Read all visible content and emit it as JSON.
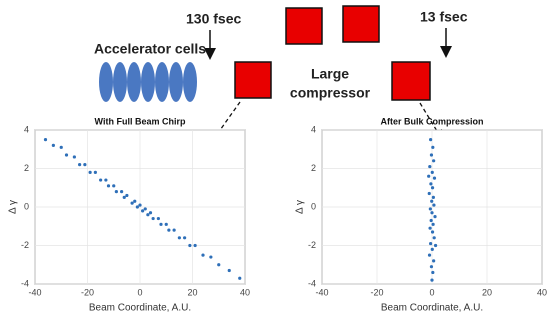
{
  "diagram": {
    "left_time": "130 fsec",
    "right_time": "13 fsec",
    "accelerator_label": "Accelerator cells",
    "compressor_label": [
      "Large",
      "compressor"
    ]
  },
  "chart_data": [
    {
      "type": "scatter",
      "title": "With Full Beam Chirp",
      "x_label": "Beam Coordinate, A.U.",
      "y_label": "Δ γ",
      "color": "#2e6fb8",
      "grid": true,
      "xlim": [
        -40,
        40
      ],
      "xticks": [
        -40,
        -20,
        0,
        20,
        40
      ],
      "ylim": [
        -4,
        4
      ],
      "yticks": [
        -4,
        -2,
        0,
        2,
        4
      ],
      "x": [
        -36,
        -33,
        -30,
        -28,
        -25,
        -23,
        -21,
        -19,
        -17,
        -15,
        -13,
        -12,
        -10,
        -9,
        -7,
        -6,
        -5,
        -3,
        -2,
        -1,
        0,
        1,
        2,
        3,
        4,
        5,
        7,
        8,
        10,
        11,
        13,
        15,
        17,
        19,
        21,
        24,
        27,
        30,
        34,
        38
      ],
      "values": [
        3.5,
        3.2,
        3.1,
        2.7,
        2.6,
        2.2,
        2.2,
        1.8,
        1.8,
        1.4,
        1.4,
        1.1,
        1.1,
        0.8,
        0.8,
        0.5,
        0.6,
        0.2,
        0.3,
        0.0,
        0.1,
        -0.2,
        -0.1,
        -0.4,
        -0.3,
        -0.6,
        -0.6,
        -0.9,
        -0.9,
        -1.2,
        -1.2,
        -1.6,
        -1.6,
        -2.0,
        -2.0,
        -2.5,
        -2.6,
        -3.0,
        -3.3,
        -3.7
      ]
    },
    {
      "type": "scatter",
      "title": "After Bulk Compression",
      "x_label": "Beam Coordinate, A.U.",
      "y_label": "Δ γ",
      "color": "#2e6fb8",
      "grid": true,
      "xlim": [
        -40,
        40
      ],
      "xticks": [
        -40,
        -20,
        0,
        20,
        40
      ],
      "ylim": [
        -4,
        4
      ],
      "yticks": [
        -4,
        -2,
        0,
        2,
        4
      ],
      "x": [
        -0.5,
        0.3,
        -0.2,
        0.6,
        -0.8,
        0.1,
        0.9,
        -0.4,
        0.2,
        -1,
        0.5,
        -0.1,
        0.7,
        -0.6,
        0.0,
        1.1,
        -0.3,
        0.4,
        -0.7,
        0.2,
        0.8,
        -0.5,
        0.1,
        -0.9,
        0.6,
        -0.2,
        0.3,
        1.3,
        -1.2,
        0.0
      ],
      "values": [
        3.5,
        3.1,
        2.7,
        2.4,
        2.1,
        1.8,
        1.5,
        1.2,
        1.0,
        0.7,
        0.5,
        0.3,
        0.1,
        -0.1,
        -0.3,
        -0.5,
        -0.7,
        -0.9,
        -1.1,
        -1.3,
        -1.6,
        -1.9,
        -2.2,
        -2.5,
        -2.8,
        -3.1,
        -3.4,
        -2.0,
        1.6,
        -3.8
      ]
    }
  ]
}
